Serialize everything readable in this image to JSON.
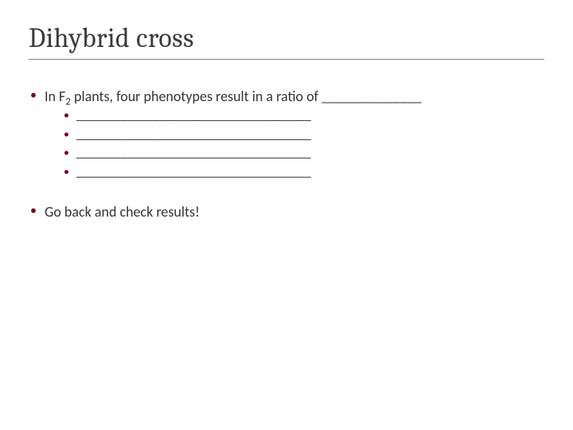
{
  "title": "Dihybrid cross",
  "body": {
    "bullet1_pre": "In F",
    "bullet1_sub": "2",
    "bullet1_post": " plants, four phenotypes result in a ratio of ______________",
    "sub_blanks": [
      "_____________________________________",
      "_____________________________________",
      "_____________________________________",
      "_____________________________________"
    ],
    "bullet2": "Go back and check results!"
  },
  "colors": {
    "bullet_marker": "#7a0019",
    "text": "#3b3b3b",
    "rule": "#808080",
    "background": "#ffffff"
  },
  "typography": {
    "title_font": "Cambria, Georgia, serif",
    "title_size_pt": 26,
    "body_font": "Calibri, Segoe UI, Arial, sans-serif",
    "body_size_pt": 14,
    "sub_size_pt": 12
  }
}
